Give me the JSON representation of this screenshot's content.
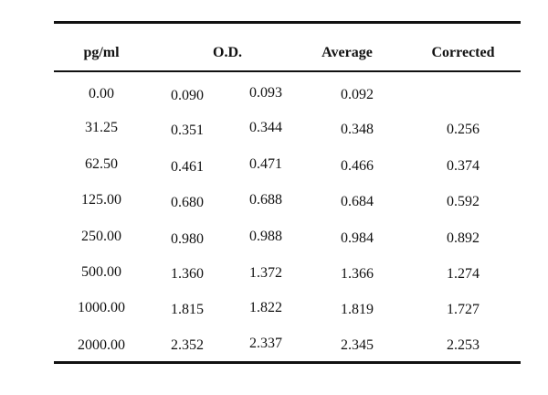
{
  "table": {
    "headers": {
      "col1": "pg/ml",
      "col2": "O.D.",
      "col3": "Average",
      "col4": "Corrected"
    },
    "rows": [
      {
        "pgml": "0.00",
        "od1": "0.090",
        "od2": "0.093",
        "average": "0.092",
        "corrected": ""
      },
      {
        "pgml": "31.25",
        "od1": "0.351",
        "od2": "0.344",
        "average": "0.348",
        "corrected": "0.256"
      },
      {
        "pgml": "62.50",
        "od1": "0.461",
        "od2": "0.471",
        "average": "0.466",
        "corrected": "0.374"
      },
      {
        "pgml": "125.00",
        "od1": "0.680",
        "od2": "0.688",
        "average": "0.684",
        "corrected": "0.592"
      },
      {
        "pgml": "250.00",
        "od1": "0.980",
        "od2": "0.988",
        "average": "0.984",
        "corrected": "0.892"
      },
      {
        "pgml": "500.00",
        "od1": "1.360",
        "od2": "1.372",
        "average": "1.366",
        "corrected": "1.274"
      },
      {
        "pgml": "1000.00",
        "od1": "1.815",
        "od2": "1.822",
        "average": "1.819",
        "corrected": "1.727"
      },
      {
        "pgml": "2000.00",
        "od1": "2.352",
        "od2": "2.337",
        "average": "2.345",
        "corrected": "2.253"
      }
    ]
  }
}
